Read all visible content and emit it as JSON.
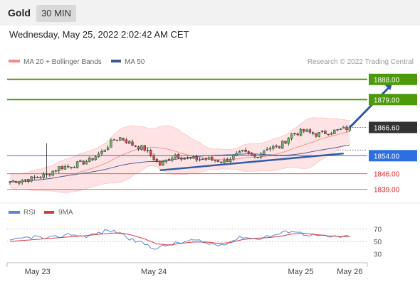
{
  "header": {
    "instrument": "Gold",
    "timeframe": "30 MIN"
  },
  "timestamp": "Wednesday, May 25, 2022 2:02:42 AM CET",
  "legend": {
    "bollinger": "MA 20 + Bollinger Bands",
    "ma50": "MA 50",
    "credit": "Research © 2022 Trading Central"
  },
  "rsi_legend": {
    "rsi": "RSI",
    "ma9": "9MA"
  },
  "colors": {
    "resistance": "#4c9a0a",
    "support": "#e26060",
    "pivot": "#2d6fe0",
    "price_tag": "#333333",
    "bollinger": "#f48a8a",
    "bollinger_fill": "#fde3e3",
    "ma50": "#3a5a9c",
    "trend_arrow": "#2e5aa8",
    "candle_up": "#6ab36a",
    "candle_down": "#d44a4a",
    "rsi": "#5b84d6",
    "rsi_ma": "#d43a3a"
  },
  "chart_data": {
    "type": "candlestick",
    "price_range": [
      1834.8,
      1893.0
    ],
    "levels": [
      {
        "value": 1888.0,
        "label": "1888.00",
        "kind": "resistance"
      },
      {
        "value": 1879.0,
        "label": "1879.00",
        "kind": "resistance"
      },
      {
        "value": 1866.6,
        "label": "1866.60",
        "kind": "last"
      },
      {
        "value": 1854.0,
        "label": "1854.00",
        "kind": "pivot"
      },
      {
        "value": 1846.0,
        "label": "1846.00",
        "kind": "support"
      },
      {
        "value": 1839.0,
        "label": "1839.00",
        "kind": "support"
      }
    ],
    "x_labels": [
      "May 23",
      "May 24",
      "May 25",
      "May 26"
    ],
    "x_label_bars": [
      9,
      47,
      95,
      111
    ],
    "bar_count": 112,
    "trend_line": {
      "from_bar": 49,
      "from": 1847.5,
      "to_bar": 109,
      "to": 1855.0
    },
    "forecast_arrow": {
      "from_bar": 111,
      "from": 1866.6,
      "to_bar": 125,
      "to": 1887.0
    },
    "ohlc_path": [
      [
        0,
        1842.5
      ],
      [
        6,
        1843.5
      ],
      [
        12,
        1845.5
      ],
      [
        16,
        1848.8
      ],
      [
        20,
        1849.5
      ],
      [
        26,
        1852.0
      ],
      [
        30,
        1855.5
      ],
      [
        34,
        1861.3
      ],
      [
        36,
        1862.0
      ],
      [
        40,
        1859.0
      ],
      [
        44,
        1857.0
      ],
      [
        49,
        1850.0
      ],
      [
        54,
        1854.5
      ],
      [
        58,
        1852.5
      ],
      [
        64,
        1852.5
      ],
      [
        70,
        1851.5
      ],
      [
        76,
        1855.5
      ],
      [
        80,
        1853.5
      ],
      [
        84,
        1857.5
      ],
      [
        88,
        1858.0
      ],
      [
        92,
        1863.5
      ],
      [
        96,
        1865.0
      ],
      [
        100,
        1863.5
      ],
      [
        104,
        1864.5
      ],
      [
        108,
        1865.5
      ],
      [
        111,
        1866.6
      ]
    ],
    "rsi": {
      "range": [
        20,
        80
      ],
      "ticks": [
        70,
        50,
        30
      ],
      "rsi_path": [
        [
          0,
          50
        ],
        [
          4,
          55
        ],
        [
          8,
          58
        ],
        [
          12,
          54
        ],
        [
          16,
          58
        ],
        [
          20,
          62
        ],
        [
          24,
          58
        ],
        [
          28,
          62
        ],
        [
          32,
          68
        ],
        [
          36,
          64
        ],
        [
          40,
          52
        ],
        [
          44,
          46
        ],
        [
          48,
          38
        ],
        [
          52,
          45
        ],
        [
          56,
          48
        ],
        [
          60,
          52
        ],
        [
          64,
          47
        ],
        [
          68,
          44
        ],
        [
          72,
          50
        ],
        [
          76,
          58
        ],
        [
          80,
          54
        ],
        [
          84,
          58
        ],
        [
          88,
          62
        ],
        [
          92,
          68
        ],
        [
          96,
          62
        ],
        [
          100,
          60
        ],
        [
          104,
          57
        ],
        [
          108,
          58
        ],
        [
          111,
          57
        ]
      ],
      "ma_path": [
        [
          0,
          50
        ],
        [
          8,
          53
        ],
        [
          16,
          56
        ],
        [
          24,
          59
        ],
        [
          32,
          63
        ],
        [
          36,
          64
        ],
        [
          40,
          60
        ],
        [
          44,
          54
        ],
        [
          48,
          46
        ],
        [
          52,
          44
        ],
        [
          56,
          47
        ],
        [
          60,
          49
        ],
        [
          64,
          49
        ],
        [
          68,
          47
        ],
        [
          72,
          48
        ],
        [
          76,
          53
        ],
        [
          80,
          55
        ],
        [
          84,
          56
        ],
        [
          88,
          58
        ],
        [
          92,
          62
        ],
        [
          96,
          63
        ],
        [
          100,
          61
        ],
        [
          104,
          59
        ],
        [
          108,
          58
        ],
        [
          111,
          58
        ]
      ]
    }
  }
}
